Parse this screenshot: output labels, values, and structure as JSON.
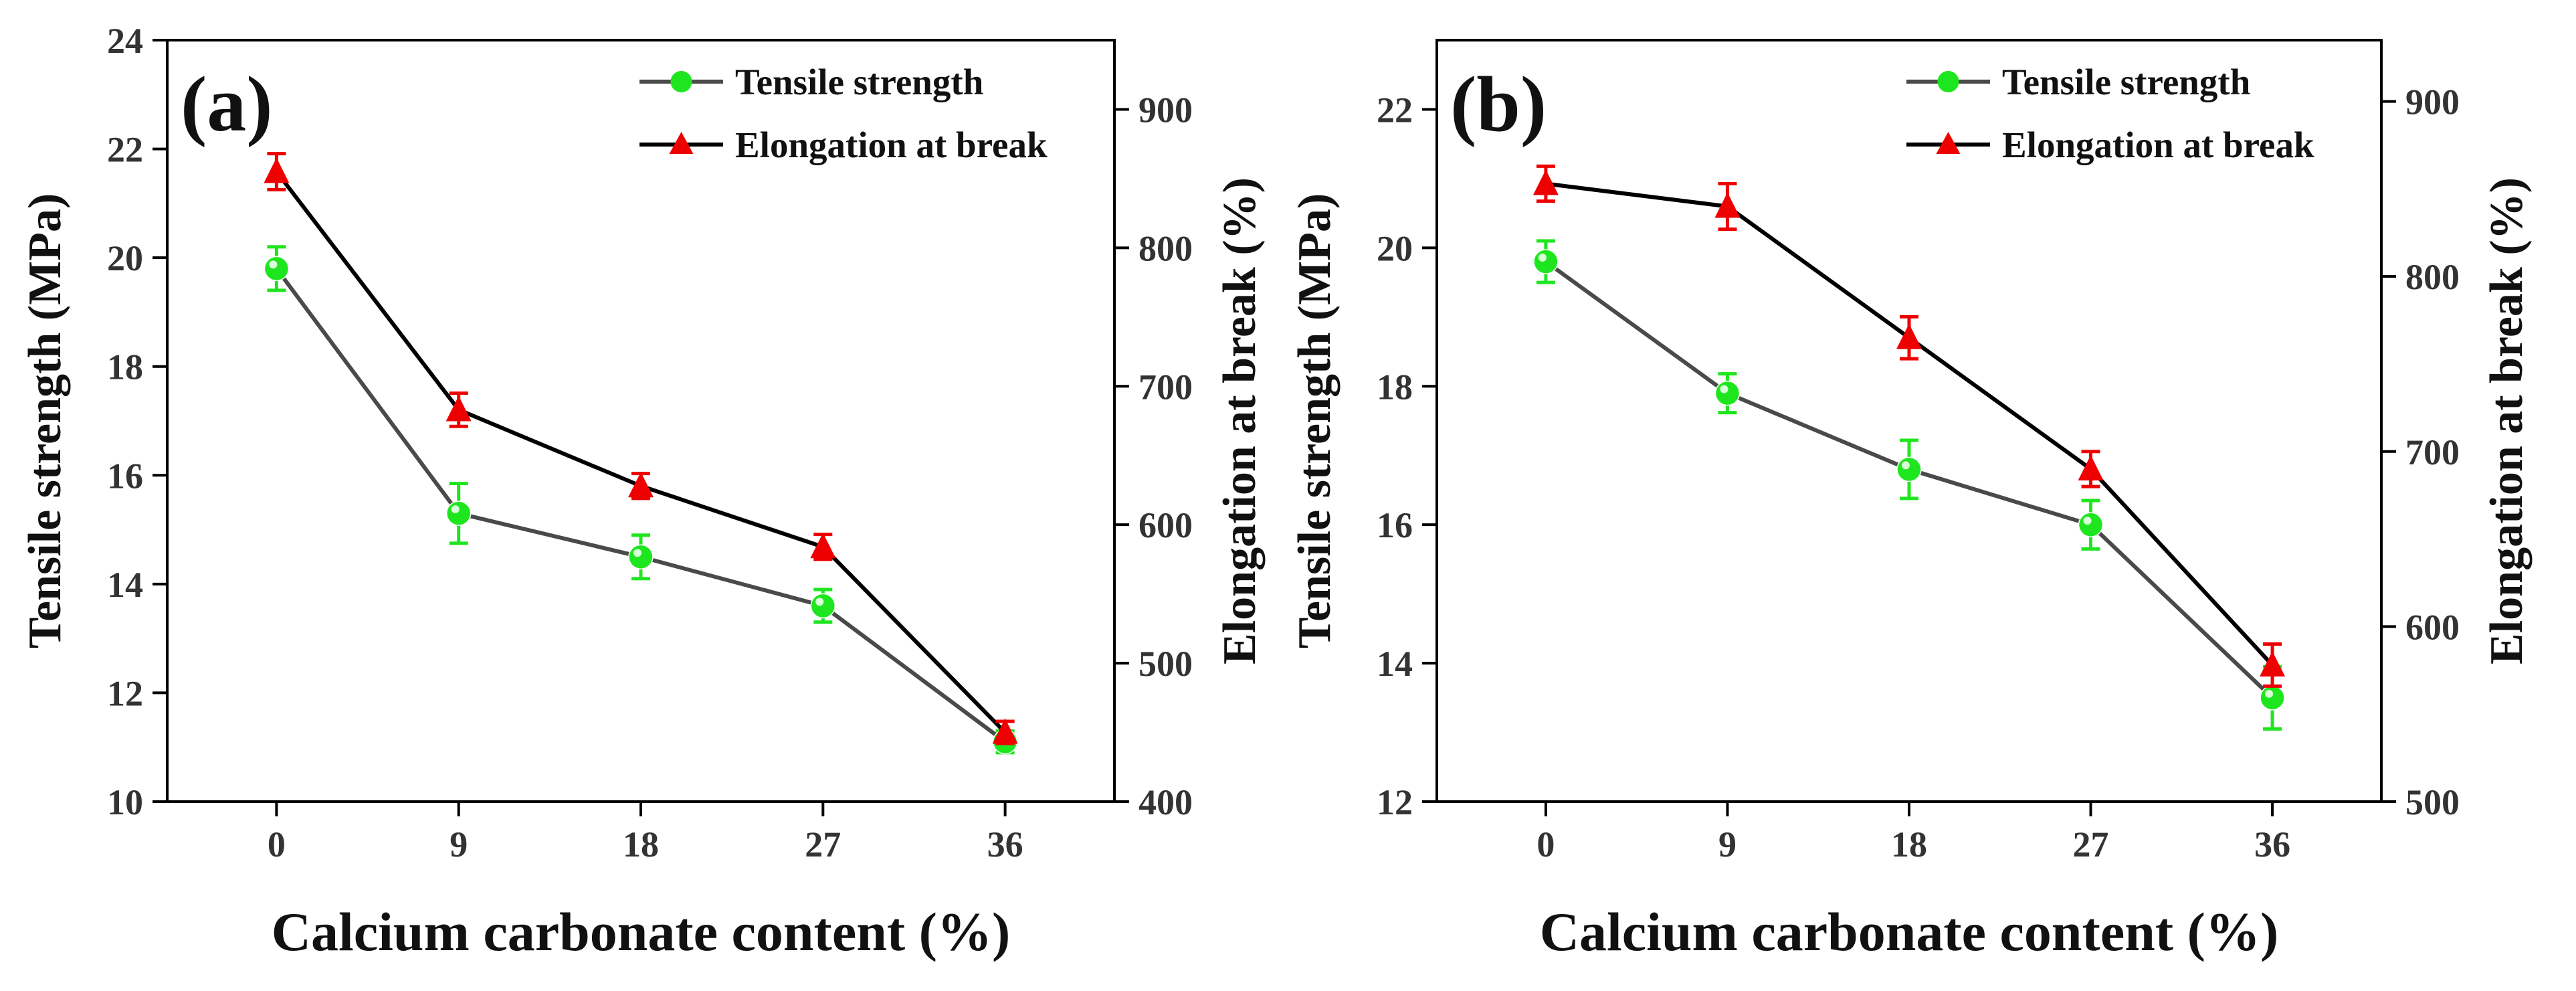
{
  "chart_data": [
    {
      "panel_label": "(a)",
      "type": "line",
      "xlabel": "Calcium carbonate content (%)",
      "categories": [
        "0",
        "9",
        "18",
        "27",
        "36"
      ],
      "x_values": [
        0,
        9,
        18,
        27,
        36
      ],
      "xlim": [
        -5.4,
        41.4
      ],
      "y_left": {
        "label": "Tensile strength (MPa)",
        "lim": [
          10,
          24
        ],
        "ticks": [
          10,
          12,
          14,
          16,
          18,
          20,
          22,
          24
        ],
        "tick_labels": [
          "10",
          "12",
          "14",
          "16",
          "18",
          "20",
          "22",
          "24"
        ]
      },
      "y_right": {
        "label": "Elongation at break (%)",
        "lim": [
          400,
          950
        ],
        "ticks": [
          400,
          500,
          600,
          700,
          800,
          900
        ],
        "tick_labels": [
          "400",
          "500",
          "600",
          "700",
          "800",
          "900"
        ]
      },
      "legend_position": "top-right",
      "series": [
        {
          "name": "Tensile strength",
          "axis": "left",
          "marker": "circle",
          "line_color": "#4a4a4a",
          "marker_color": "#1ee61e",
          "values": [
            19.8,
            15.3,
            14.5,
            13.6,
            11.1
          ],
          "errors": [
            0.4,
            0.55,
            0.4,
            0.3,
            0.2
          ]
        },
        {
          "name": "Elongation at break",
          "axis": "right",
          "marker": "triangle",
          "line_color": "#000000",
          "marker_color": "#ee0000",
          "values": [
            855,
            683,
            628,
            584,
            450
          ],
          "errors": [
            13,
            12,
            9,
            9,
            8
          ]
        }
      ]
    },
    {
      "panel_label": "(b)",
      "type": "line",
      "xlabel": "Calcium carbonate content (%)",
      "categories": [
        "0",
        "9",
        "18",
        "27",
        "36"
      ],
      "x_values": [
        0,
        9,
        18,
        27,
        36
      ],
      "xlim": [
        -5.4,
        41.4
      ],
      "y_left": {
        "label": "Tensile strength (MPa)",
        "lim": [
          12,
          23
        ],
        "ticks": [
          12,
          14,
          16,
          18,
          20,
          22
        ],
        "tick_labels": [
          "12",
          "14",
          "16",
          "18",
          "20",
          "22"
        ]
      },
      "y_right": {
        "label": "Elongation at break (%)",
        "lim": [
          500,
          935
        ],
        "ticks": [
          500,
          600,
          700,
          800,
          900
        ],
        "tick_labels": [
          "500",
          "600",
          "700",
          "800",
          "900"
        ]
      },
      "legend_position": "top-right",
      "series": [
        {
          "name": "Tensile strength",
          "axis": "left",
          "marker": "circle",
          "line_color": "#4a4a4a",
          "marker_color": "#1ee61e",
          "values": [
            19.8,
            17.9,
            16.8,
            16.0,
            13.5
          ],
          "errors": [
            0.3,
            0.28,
            0.42,
            0.35,
            0.45
          ]
        },
        {
          "name": "Elongation at break",
          "axis": "right",
          "marker": "triangle",
          "line_color": "#000000",
          "marker_color": "#ee0000",
          "values": [
            853,
            840,
            765,
            690,
            578
          ],
          "errors": [
            10,
            13,
            12,
            10,
            12
          ]
        }
      ]
    }
  ]
}
